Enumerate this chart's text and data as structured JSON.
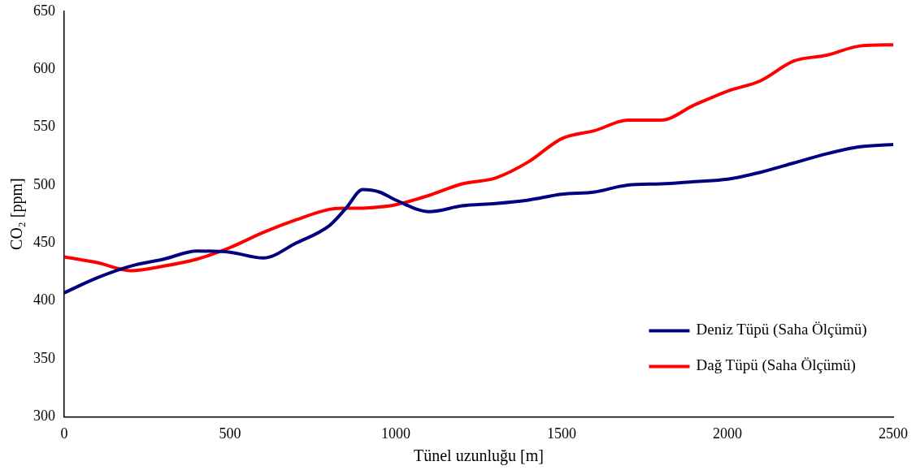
{
  "chart_data": {
    "type": "line",
    "xlabel": "Tünel uzunluğu [m]",
    "ylabel": "CO₂ [ppm]",
    "x": [
      0,
      100,
      200,
      300,
      400,
      500,
      600,
      700,
      800,
      850,
      900,
      950,
      1000,
      1100,
      1200,
      1300,
      1400,
      1500,
      1600,
      1700,
      1800,
      1900,
      2000,
      2100,
      2200,
      2300,
      2400,
      2500
    ],
    "series": [
      {
        "name": "Deniz Tüpü (Saha Ölçümü)",
        "color": "#000080",
        "values": [
          407,
          420,
          430,
          436,
          443,
          442,
          437,
          450,
          465,
          480,
          496,
          494,
          487,
          477,
          482,
          484,
          487,
          492,
          494,
          500,
          501,
          503,
          505,
          511,
          519,
          527,
          533,
          535
        ]
      },
      {
        "name": "Dağ Tüpü (Saha Ölçümü)",
        "color": "#ff0000",
        "values": [
          438,
          433,
          426,
          430,
          436,
          446,
          459,
          470,
          479,
          480,
          480,
          481,
          483,
          491,
          501,
          506,
          520,
          540,
          547,
          556,
          556,
          569,
          581,
          590,
          607,
          612,
          620,
          621
        ]
      }
    ],
    "xlim": [
      0,
      2500
    ],
    "xticks": [
      0,
      500,
      1000,
      1500,
      2000,
      2500
    ],
    "ylim": [
      300,
      650
    ],
    "yticks": [
      300,
      350,
      400,
      450,
      500,
      550,
      600,
      650
    ],
    "grid": false,
    "legend": "bottom right",
    "marker": "none",
    "line_style": "solid"
  }
}
